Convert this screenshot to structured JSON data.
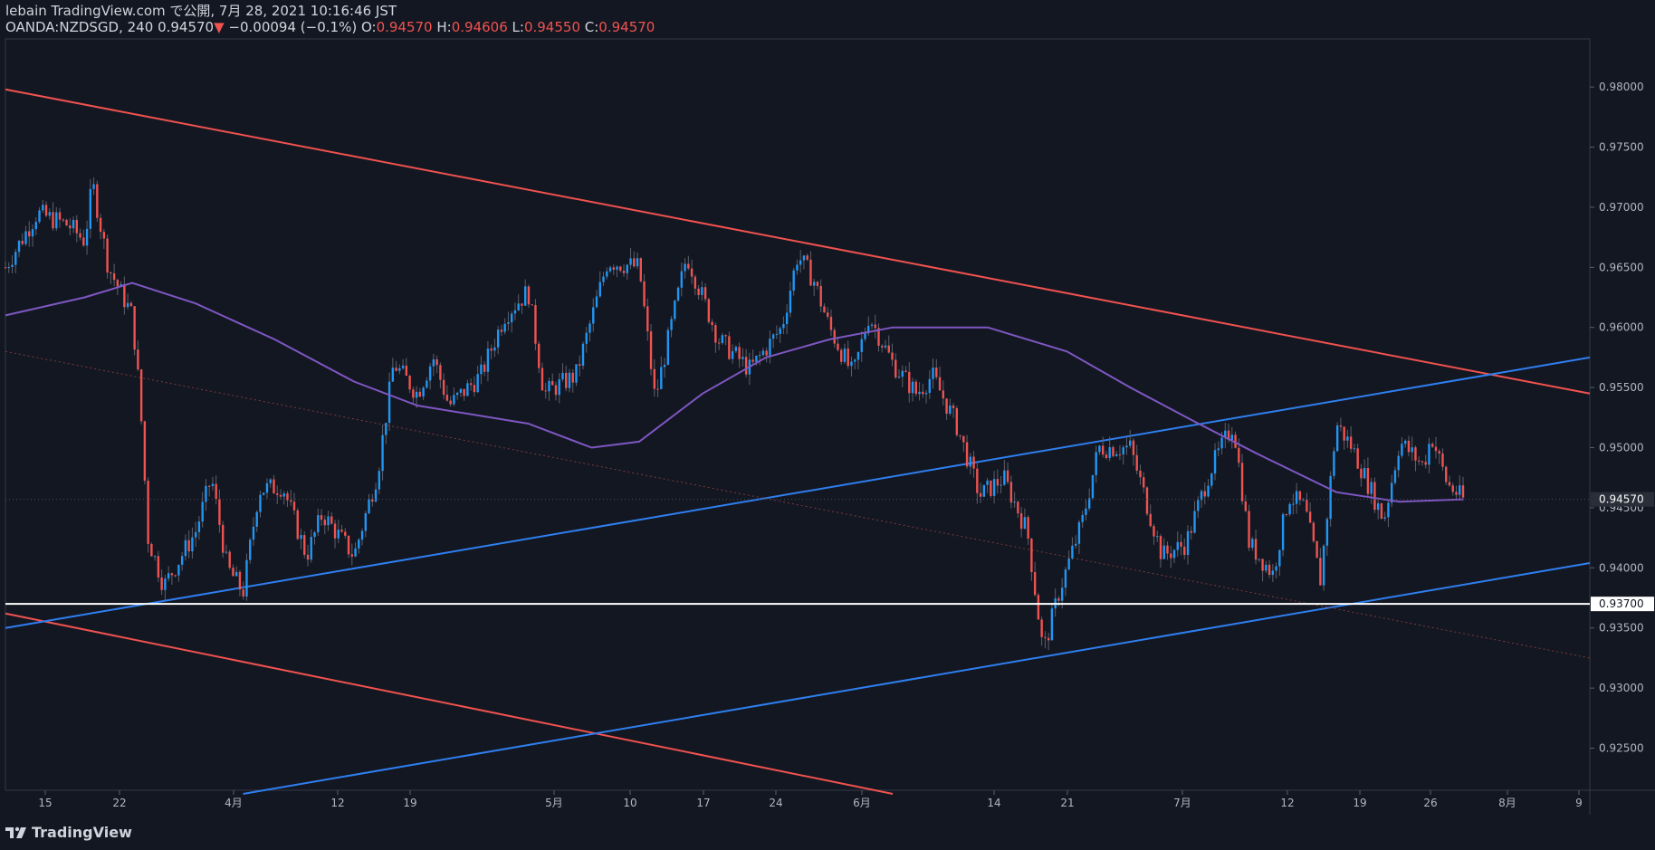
{
  "header": {
    "line1": "lebain TradingView.com で公開, 7月 28, 2021 10:16:46 JST",
    "symbol": "OANDA:NZDSGD, 240",
    "last": "0.94570",
    "change": "−0.00094 (−0.1%)",
    "o_label": "O:",
    "o_value": "0.94570",
    "h_label": "H:",
    "h_value": "0.94606",
    "l_label": "L:",
    "l_value": "0.94550",
    "c_label": "C:",
    "c_value": "0.94570"
  },
  "brand": "TradingView",
  "colors": {
    "bg": "#131722",
    "up": "#2196f3",
    "down": "#ef5350",
    "ma": "#7e57c2",
    "trend_red": "#f23645",
    "trend_blue": "#2962ff",
    "hline": "#ffffff"
  },
  "chart_data": {
    "type": "candlestick",
    "symbol": "OANDA:NZDSGD",
    "timeframe": "240",
    "ylim": [
      0.9215,
      0.984
    ],
    "price_ticks": [
      "0.98000",
      "0.97500",
      "0.97000",
      "0.96500",
      "0.96000",
      "0.95500",
      "0.95000",
      "0.94500",
      "0.94000",
      "0.93500",
      "0.93000",
      "0.92500"
    ],
    "x_ticks": [
      "15",
      "22",
      "4月",
      "12",
      "19",
      "5月",
      "10",
      "17",
      "24",
      "6月",
      "14",
      "21",
      "7月",
      "12",
      "19",
      "26",
      "8月",
      "9"
    ],
    "last_price_label": "0.94570",
    "hline_label": "0.93700",
    "hline_price": 0.937,
    "trend_lines": [
      {
        "color": "red",
        "from": [
          0,
          0.9798
        ],
        "to": [
          1,
          0.9545
        ]
      },
      {
        "color": "red",
        "from": [
          0,
          0.9362
        ],
        "to": [
          0.56,
          0.9212
        ]
      },
      {
        "color": "blue",
        "from": [
          0,
          0.935
        ],
        "to": [
          1,
          0.9575
        ]
      },
      {
        "color": "blue",
        "from": [
          0.15,
          0.9212
        ],
        "to": [
          1,
          0.9404
        ]
      }
    ],
    "moving_average": [
      [
        0,
        0.961
      ],
      [
        0.05,
        0.9625
      ],
      [
        0.08,
        0.9637
      ],
      [
        0.12,
        0.962
      ],
      [
        0.17,
        0.959
      ],
      [
        0.22,
        0.9555
      ],
      [
        0.26,
        0.9535
      ],
      [
        0.33,
        0.952
      ],
      [
        0.37,
        0.95
      ],
      [
        0.4,
        0.9505
      ],
      [
        0.44,
        0.9545
      ],
      [
        0.48,
        0.9575
      ],
      [
        0.52,
        0.959
      ],
      [
        0.56,
        0.96
      ],
      [
        0.62,
        0.96
      ],
      [
        0.67,
        0.958
      ],
      [
        0.71,
        0.955
      ],
      [
        0.75,
        0.9522
      ],
      [
        0.79,
        0.9495
      ],
      [
        0.84,
        0.9463
      ],
      [
        0.88,
        0.9455
      ],
      [
        0.92,
        0.9457
      ]
    ],
    "price_path": [
      [
        0,
        0.965
      ],
      [
        0.02,
        0.9695
      ],
      [
        0.04,
        0.9685
      ],
      [
        0.05,
        0.9672
      ],
      [
        0.055,
        0.972
      ],
      [
        0.065,
        0.965
      ],
      [
        0.08,
        0.961
      ],
      [
        0.085,
        0.954
      ],
      [
        0.09,
        0.9425
      ],
      [
        0.1,
        0.9385
      ],
      [
        0.12,
        0.943
      ],
      [
        0.13,
        0.9475
      ],
      [
        0.14,
        0.94
      ],
      [
        0.15,
        0.938
      ],
      [
        0.16,
        0.9465
      ],
      [
        0.175,
        0.9468
      ],
      [
        0.19,
        0.941
      ],
      [
        0.2,
        0.9445
      ],
      [
        0.22,
        0.941
      ],
      [
        0.235,
        0.948
      ],
      [
        0.245,
        0.957
      ],
      [
        0.26,
        0.9545
      ],
      [
        0.27,
        0.9575
      ],
      [
        0.28,
        0.9535
      ],
      [
        0.3,
        0.956
      ],
      [
        0.315,
        0.961
      ],
      [
        0.33,
        0.963
      ],
      [
        0.34,
        0.9545
      ],
      [
        0.36,
        0.956
      ],
      [
        0.38,
        0.9655
      ],
      [
        0.4,
        0.965
      ],
      [
        0.41,
        0.954
      ],
      [
        0.43,
        0.966
      ],
      [
        0.45,
        0.959
      ],
      [
        0.47,
        0.9565
      ],
      [
        0.49,
        0.96
      ],
      [
        0.5,
        0.966
      ],
      [
        0.51,
        0.964
      ],
      [
        0.52,
        0.96
      ],
      [
        0.535,
        0.956
      ],
      [
        0.545,
        0.961
      ],
      [
        0.56,
        0.957
      ],
      [
        0.575,
        0.9545
      ],
      [
        0.585,
        0.956
      ],
      [
        0.6,
        0.952
      ],
      [
        0.615,
        0.946
      ],
      [
        0.63,
        0.9475
      ],
      [
        0.645,
        0.943
      ],
      [
        0.655,
        0.933
      ],
      [
        0.665,
        0.938
      ],
      [
        0.68,
        0.944
      ],
      [
        0.69,
        0.95
      ],
      [
        0.71,
        0.95
      ],
      [
        0.72,
        0.9455
      ],
      [
        0.73,
        0.941
      ],
      [
        0.745,
        0.942
      ],
      [
        0.76,
        0.948
      ],
      [
        0.775,
        0.952
      ],
      [
        0.785,
        0.942
      ],
      [
        0.8,
        0.9395
      ],
      [
        0.81,
        0.946
      ],
      [
        0.82,
        0.945
      ],
      [
        0.83,
        0.939
      ],
      [
        0.84,
        0.952
      ],
      [
        0.85,
        0.95
      ],
      [
        0.86,
        0.947
      ],
      [
        0.87,
        0.944
      ],
      [
        0.88,
        0.9505
      ],
      [
        0.895,
        0.9485
      ],
      [
        0.9,
        0.951
      ],
      [
        0.91,
        0.947
      ],
      [
        0.92,
        0.9457
      ]
    ]
  }
}
